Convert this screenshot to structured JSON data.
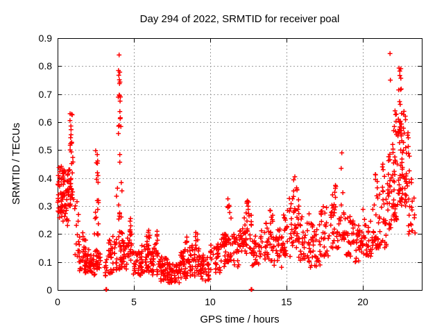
{
  "chart_data": {
    "type": "scatter",
    "title": "Day 294 of 2022, SRMTID for receiver poal",
    "xlabel": "GPS time / hours",
    "ylabel": "SRMTID / TECUs",
    "xlim": [
      0,
      23.86
    ],
    "ylim": [
      0,
      0.9
    ],
    "xticks": [
      {
        "v": 0,
        "label": "0"
      },
      {
        "v": 5,
        "label": "5"
      },
      {
        "v": 10,
        "label": "10"
      },
      {
        "v": 15,
        "label": "15"
      },
      {
        "v": 20,
        "label": "20"
      }
    ],
    "yticks": [
      {
        "v": 0.0,
        "label": "0"
      },
      {
        "v": 0.1,
        "label": "0.1"
      },
      {
        "v": 0.2,
        "label": "0.2"
      },
      {
        "v": 0.3,
        "label": "0.3"
      },
      {
        "v": 0.4,
        "label": "0.4"
      },
      {
        "v": 0.5,
        "label": "0.5"
      },
      {
        "v": 0.6,
        "label": "0.6"
      },
      {
        "v": 0.7,
        "label": "0.7"
      },
      {
        "v": 0.8,
        "label": "0.8"
      },
      {
        "v": 0.9,
        "label": "0.9"
      }
    ],
    "grid": true,
    "grid_style": "dotted",
    "legend": "none",
    "marker": "plus",
    "colors": {
      "points": "#ff0000",
      "grid": "#9e9e9e",
      "border": "#000000",
      "text": "#000000",
      "background": "#ffffff"
    },
    "clusters_format": "[xStart, xEnd, yMin, yMax, count] envelopes read from the plot",
    "point_clusters": [
      [
        0.0,
        0.35,
        0.28,
        0.46,
        30
      ],
      [
        0.05,
        0.3,
        0.24,
        0.3,
        8
      ],
      [
        0.3,
        0.85,
        0.3,
        0.45,
        45
      ],
      [
        0.35,
        0.8,
        0.22,
        0.3,
        10
      ],
      [
        0.82,
        1.05,
        0.32,
        0.5,
        18
      ],
      [
        0.8,
        1.0,
        0.5,
        0.64,
        12
      ],
      [
        1.1,
        1.45,
        0.12,
        0.32,
        14
      ],
      [
        1.4,
        2.05,
        0.06,
        0.15,
        42
      ],
      [
        1.55,
        1.85,
        0.15,
        0.21,
        6
      ],
      [
        2.05,
        2.55,
        0.05,
        0.13,
        30
      ],
      [
        2.55,
        2.85,
        0.07,
        0.15,
        16
      ],
      [
        2.45,
        2.75,
        0.12,
        0.3,
        12
      ],
      [
        2.45,
        2.7,
        0.3,
        0.43,
        7
      ],
      [
        2.48,
        2.65,
        0.43,
        0.5,
        5
      ],
      [
        3.05,
        3.6,
        0.04,
        0.15,
        22
      ],
      [
        3.3,
        3.55,
        0.13,
        0.18,
        6
      ],
      [
        3.6,
        3.9,
        0.07,
        0.2,
        16
      ],
      [
        3.85,
        4.25,
        0.25,
        0.45,
        10
      ],
      [
        3.95,
        4.15,
        0.45,
        0.6,
        6
      ],
      [
        3.97,
        4.13,
        0.6,
        0.73,
        8
      ],
      [
        3.98,
        4.12,
        0.73,
        0.8,
        6
      ],
      [
        4.02,
        4.06,
        0.83,
        0.85,
        1
      ],
      [
        3.95,
        4.4,
        0.1,
        0.22,
        18
      ],
      [
        4.05,
        4.55,
        0.07,
        0.16,
        25
      ],
      [
        4.55,
        4.9,
        0.1,
        0.2,
        18
      ],
      [
        4.65,
        4.8,
        0.2,
        0.27,
        6
      ],
      [
        4.9,
        5.5,
        0.05,
        0.14,
        35
      ],
      [
        5.5,
        6.1,
        0.06,
        0.16,
        35
      ],
      [
        5.8,
        6.05,
        0.16,
        0.22,
        8
      ],
      [
        6.1,
        6.6,
        0.05,
        0.15,
        30
      ],
      [
        6.3,
        6.55,
        0.15,
        0.21,
        7
      ],
      [
        6.6,
        7.2,
        0.03,
        0.12,
        40
      ],
      [
        7.2,
        8.0,
        0.025,
        0.1,
        50
      ],
      [
        8.0,
        8.6,
        0.04,
        0.14,
        40
      ],
      [
        8.35,
        8.5,
        0.14,
        0.19,
        5
      ],
      [
        8.6,
        9.3,
        0.05,
        0.16,
        40
      ],
      [
        9.0,
        9.25,
        0.16,
        0.21,
        6
      ],
      [
        9.3,
        10.0,
        0.03,
        0.13,
        40
      ],
      [
        10.0,
        10.7,
        0.06,
        0.17,
        35
      ],
      [
        10.7,
        11.1,
        0.08,
        0.2,
        25
      ],
      [
        11.0,
        11.5,
        0.1,
        0.27,
        25
      ],
      [
        11.15,
        11.35,
        0.27,
        0.33,
        6
      ],
      [
        11.5,
        12.2,
        0.08,
        0.22,
        35
      ],
      [
        12.2,
        12.7,
        0.13,
        0.27,
        28
      ],
      [
        12.35,
        12.6,
        0.27,
        0.33,
        8
      ],
      [
        12.7,
        13.3,
        0.08,
        0.2,
        30
      ],
      [
        13.3,
        14.1,
        0.1,
        0.24,
        35
      ],
      [
        13.85,
        14.1,
        0.24,
        0.31,
        6
      ],
      [
        14.1,
        14.8,
        0.08,
        0.22,
        35
      ],
      [
        14.8,
        15.35,
        0.12,
        0.28,
        28
      ],
      [
        15.05,
        15.3,
        0.28,
        0.33,
        5
      ],
      [
        15.35,
        15.8,
        0.15,
        0.33,
        25
      ],
      [
        15.45,
        15.7,
        0.33,
        0.42,
        7
      ],
      [
        15.8,
        16.5,
        0.1,
        0.3,
        38
      ],
      [
        16.5,
        17.2,
        0.08,
        0.25,
        35
      ],
      [
        17.2,
        17.8,
        0.12,
        0.3,
        28
      ],
      [
        17.8,
        18.45,
        0.15,
        0.33,
        28
      ],
      [
        18.0,
        18.25,
        0.33,
        0.375,
        6
      ],
      [
        18.45,
        18.85,
        0.18,
        0.35,
        20
      ],
      [
        18.9,
        19.5,
        0.12,
        0.28,
        28
      ],
      [
        19.5,
        20.0,
        0.1,
        0.23,
        28
      ],
      [
        20.0,
        20.65,
        0.12,
        0.3,
        32
      ],
      [
        20.65,
        21.0,
        0.15,
        0.35,
        22
      ],
      [
        20.8,
        20.95,
        0.35,
        0.42,
        5
      ],
      [
        21.0,
        21.55,
        0.15,
        0.35,
        25
      ],
      [
        21.25,
        21.45,
        0.35,
        0.46,
        7
      ],
      [
        21.55,
        21.95,
        0.2,
        0.5,
        25
      ],
      [
        21.95,
        22.25,
        0.25,
        0.55,
        30
      ],
      [
        22.0,
        22.2,
        0.55,
        0.66,
        8
      ],
      [
        22.25,
        22.6,
        0.3,
        0.55,
        30
      ],
      [
        22.28,
        22.55,
        0.55,
        0.75,
        22
      ],
      [
        22.33,
        22.5,
        0.75,
        0.8,
        5
      ],
      [
        22.6,
        22.9,
        0.3,
        0.55,
        20
      ],
      [
        22.65,
        22.85,
        0.55,
        0.65,
        6
      ],
      [
        22.9,
        23.2,
        0.2,
        0.5,
        16
      ],
      [
        22.92,
        23.05,
        0.5,
        0.58,
        4
      ],
      [
        23.2,
        23.45,
        0.2,
        0.35,
        8
      ]
    ],
    "outlier_points": [
      [
        3.17,
        0.002
      ],
      [
        3.21,
        0.002
      ],
      [
        12.68,
        0.002
      ],
      [
        12.72,
        0.002
      ],
      [
        21.78,
        0.845
      ],
      [
        21.8,
        0.75
      ],
      [
        18.62,
        0.49
      ],
      [
        18.58,
        0.435
      ],
      [
        2.42,
        0.2
      ],
      [
        0.82,
        0.63
      ]
    ]
  }
}
